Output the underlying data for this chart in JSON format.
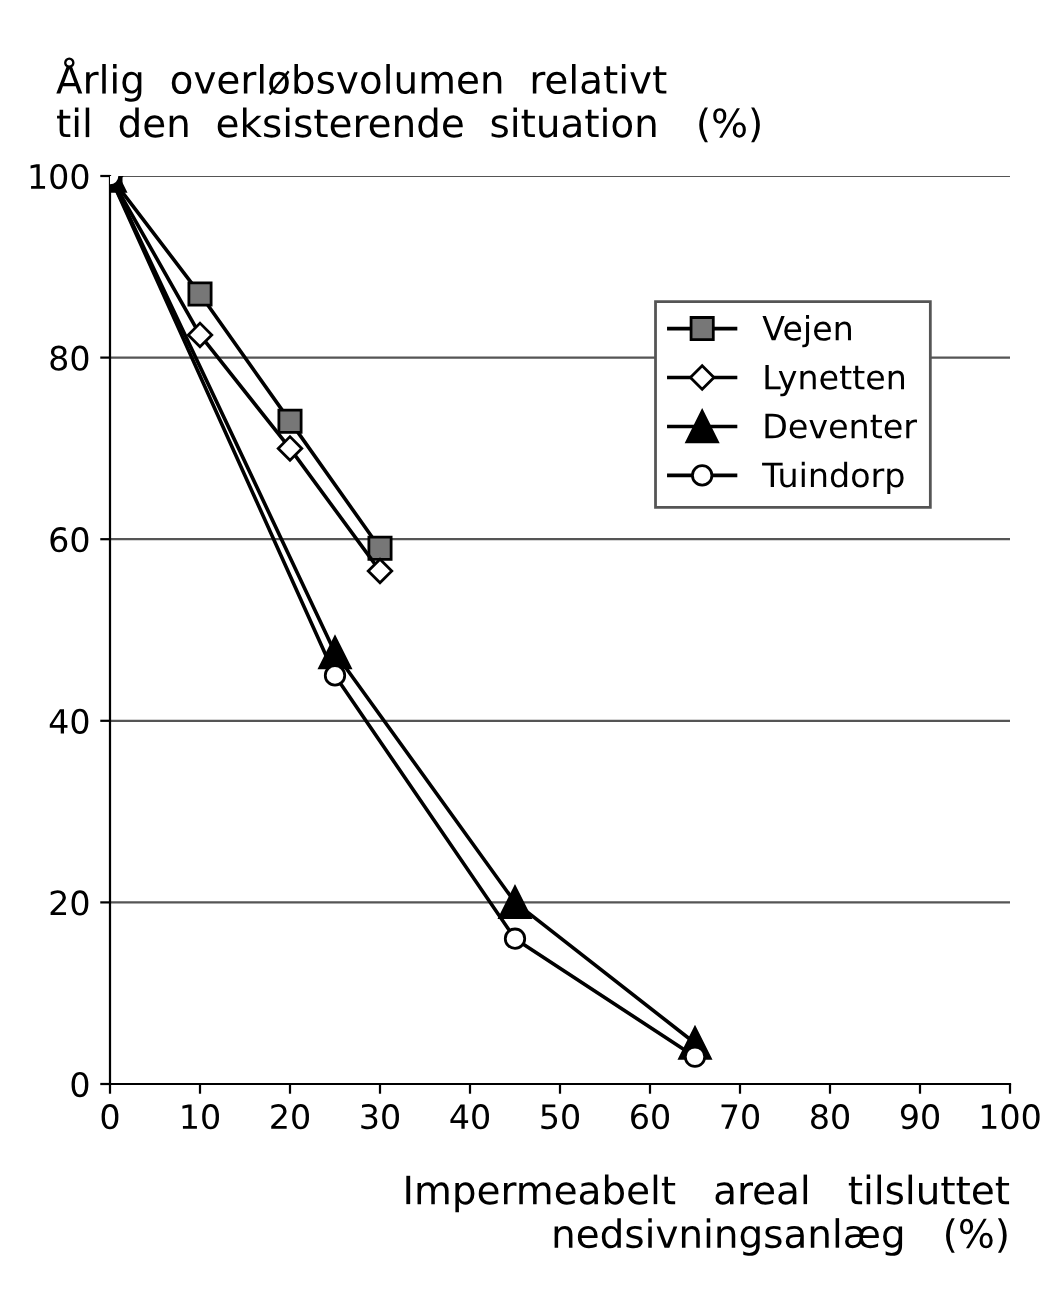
{
  "chart_data": {
    "type": "line",
    "title": "Årlig  overløbsvolumen  relativt\ntil  den  eksisterende  situation   (%)",
    "xlabel": "Impermeabelt   areal   tilsluttet\nnedsivningsanlæg   (%)",
    "xlim": [
      0,
      100
    ],
    "xticks": [
      0,
      10,
      20,
      30,
      40,
      50,
      60,
      70,
      80,
      90,
      100
    ],
    "ylim": [
      0,
      100
    ],
    "yticks": [
      0,
      20,
      40,
      60,
      80,
      100
    ],
    "grid": "y",
    "legend": "top right",
    "series": [
      {
        "name": "Vejen",
        "color": "#000000",
        "marker": "square",
        "x": [
          0,
          10,
          20,
          30
        ],
        "values": [
          100,
          87,
          73,
          59
        ]
      },
      {
        "name": "Lynetten",
        "color": "#000000",
        "marker": "diamond",
        "x": [
          0,
          10,
          20,
          30
        ],
        "values": [
          100,
          82.5,
          70,
          56.5
        ]
      },
      {
        "name": "Deventer",
        "color": "#000000",
        "marker": "triangle",
        "x": [
          0,
          25,
          45,
          65
        ],
        "values": [
          100,
          47.5,
          20,
          4.5
        ]
      },
      {
        "name": "Tuindorp",
        "color": "#000000",
        "marker": "circle",
        "x": [
          0,
          25,
          45,
          65
        ],
        "values": [
          100,
          45,
          16,
          3
        ]
      }
    ]
  }
}
